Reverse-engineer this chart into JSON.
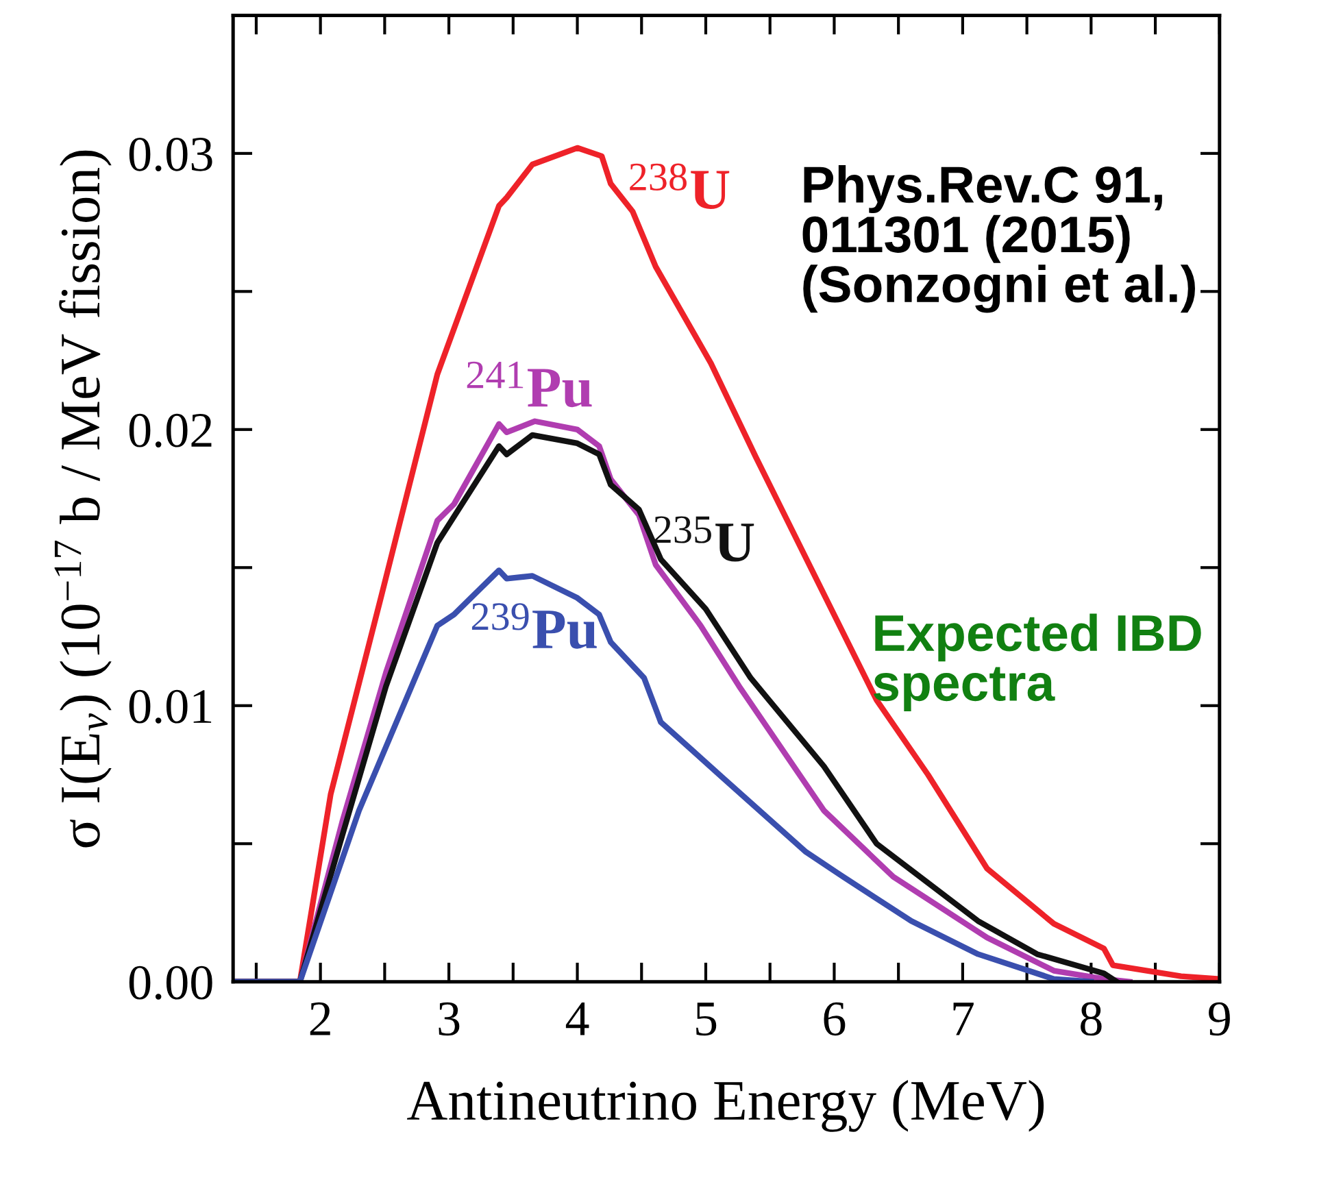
{
  "chart_data": {
    "type": "line",
    "xlabel": "Antineutrino Energy (MeV)",
    "ylabel": "σ I(E$_{ν}$) (10$^{−17}$ b / MeV fission)",
    "xlim": [
      1.32,
      9
    ],
    "ylim": [
      0,
      0.035
    ],
    "xticks": [
      {
        "value": 1.5,
        "label": null
      },
      2,
      {
        "value": 2.5,
        "label": null
      },
      3,
      {
        "value": 3.5,
        "label": null
      },
      4,
      {
        "value": 4.5,
        "label": null
      },
      5,
      {
        "value": 5.5,
        "label": null
      },
      6,
      {
        "value": 6.5,
        "label": null
      },
      7,
      {
        "value": 7.5,
        "label": null
      },
      8,
      {
        "value": 8.5,
        "label": null
      },
      9
    ],
    "yticks": [
      {
        "value": 0,
        "label": "0.00"
      },
      {
        "value": 0.005,
        "label": null
      },
      {
        "value": 0.01,
        "label": "0.01"
      },
      {
        "value": 0.015,
        "label": null
      },
      {
        "value": 0.02,
        "label": "0.02"
      },
      {
        "value": 0.025,
        "label": null
      },
      {
        "value": 0.03,
        "label": "0.03"
      }
    ],
    "grid": false,
    "legend": false,
    "marker": "none",
    "line_style": "solid",
    "series": [
      {
        "name": "$^{238}$U",
        "color": "#ee2229",
        "x": [
          1.32,
          1.84,
          2.08,
          2.47,
          2.91,
          3.39,
          3.45,
          3.65,
          4.0,
          4.19,
          4.26,
          4.43,
          4.61,
          5.04,
          5.39,
          5.87,
          6.33,
          6.73,
          7.19,
          7.71,
          8.1,
          8.17,
          8.7,
          9.0
        ],
        "values": [
          0,
          0,
          0.0068,
          0.0139,
          0.022,
          0.0281,
          0.0284,
          0.0296,
          0.0302,
          0.0299,
          0.0289,
          0.0279,
          0.0259,
          0.0224,
          0.019,
          0.0145,
          0.0102,
          0.0075,
          0.0041,
          0.0021,
          0.0012,
          0.0006,
          0.0002,
          0.0001
        ]
      },
      {
        "name": "$^{241}$Pu",
        "color": "#b03db0",
        "x": [
          1.32,
          1.84,
          2.17,
          2.51,
          2.91,
          3.04,
          3.39,
          3.45,
          3.67,
          4.0,
          4.17,
          4.26,
          4.48,
          4.61,
          4.96,
          5.26,
          5.92,
          6.46,
          7.19,
          7.71,
          8.1,
          8.3
        ],
        "values": [
          0,
          0,
          0.0058,
          0.0112,
          0.0167,
          0.0173,
          0.0202,
          0.0199,
          0.0203,
          0.02,
          0.0194,
          0.0182,
          0.0169,
          0.0151,
          0.0129,
          0.0107,
          0.0062,
          0.0038,
          0.0016,
          0.0004,
          0.0001,
          0
        ]
      },
      {
        "name": "$^{235}$U",
        "color": "#111111",
        "x": [
          1.32,
          1.84,
          2.17,
          2.51,
          2.91,
          3.39,
          3.45,
          3.65,
          4.0,
          4.17,
          4.26,
          4.48,
          4.65,
          5.0,
          5.35,
          5.92,
          6.33,
          7.12,
          7.58,
          8.1,
          8.2
        ],
        "values": [
          0,
          0,
          0.0053,
          0.0107,
          0.0159,
          0.0194,
          0.0191,
          0.0198,
          0.0195,
          0.0191,
          0.018,
          0.0171,
          0.0153,
          0.0135,
          0.011,
          0.0078,
          0.005,
          0.0022,
          0.001,
          0.0003,
          0
        ]
      },
      {
        "name": "$^{239}$Pu",
        "color": "#3a4fae",
        "x": [
          1.32,
          1.84,
          2.3,
          2.91,
          3.04,
          3.39,
          3.45,
          3.65,
          4.0,
          4.17,
          4.26,
          4.52,
          4.65,
          5.13,
          5.78,
          6.07,
          6.6,
          7.12,
          7.71,
          8.0
        ],
        "values": [
          0,
          0,
          0.0062,
          0.0129,
          0.0133,
          0.0149,
          0.0146,
          0.0147,
          0.0139,
          0.0133,
          0.0123,
          0.011,
          0.0094,
          0.0074,
          0.0047,
          0.0038,
          0.0022,
          0.001,
          0.0001,
          0
        ]
      }
    ],
    "annotations": [
      "Phys.Rev.C 91,\n011301 (2015)\n(Sonzogni et al.)",
      "Expected IBD\nspectra"
    ]
  }
}
